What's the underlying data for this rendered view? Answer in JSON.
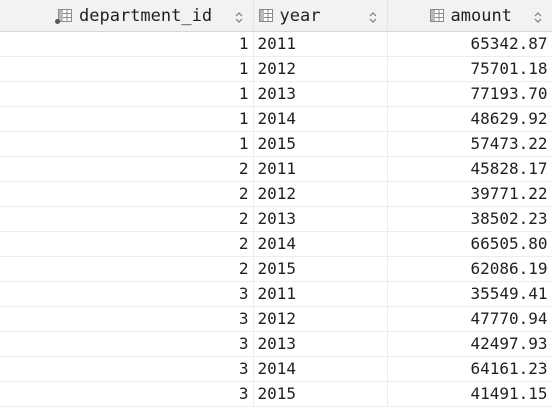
{
  "columns": [
    {
      "label": "department_id",
      "icon": "key-column-icon"
    },
    {
      "label": "year",
      "icon": "column-icon"
    },
    {
      "label": "amount",
      "icon": "column-icon"
    }
  ],
  "rows": [
    {
      "department_id": "1",
      "year": "2011",
      "amount": "65342.87"
    },
    {
      "department_id": "1",
      "year": "2012",
      "amount": "75701.18"
    },
    {
      "department_id": "1",
      "year": "2013",
      "amount": "77193.70"
    },
    {
      "department_id": "1",
      "year": "2014",
      "amount": "48629.92"
    },
    {
      "department_id": "1",
      "year": "2015",
      "amount": "57473.22"
    },
    {
      "department_id": "2",
      "year": "2011",
      "amount": "45828.17"
    },
    {
      "department_id": "2",
      "year": "2012",
      "amount": "39771.22"
    },
    {
      "department_id": "2",
      "year": "2013",
      "amount": "38502.23"
    },
    {
      "department_id": "2",
      "year": "2014",
      "amount": "66505.80"
    },
    {
      "department_id": "2",
      "year": "2015",
      "amount": "62086.19"
    },
    {
      "department_id": "3",
      "year": "2011",
      "amount": "35549.41"
    },
    {
      "department_id": "3",
      "year": "2012",
      "amount": "47770.94"
    },
    {
      "department_id": "3",
      "year": "2013",
      "amount": "42497.93"
    },
    {
      "department_id": "3",
      "year": "2014",
      "amount": "64161.23"
    },
    {
      "department_id": "3",
      "year": "2015",
      "amount": "41491.15"
    }
  ]
}
